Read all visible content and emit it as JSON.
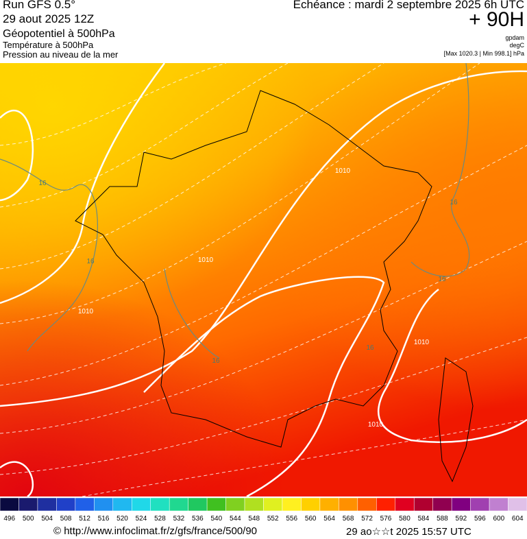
{
  "header": {
    "left": [
      "Run GFS 0.5°",
      "29 aout 2025 12Z",
      "Géopotentiel à 500hPa",
      "Température à 500hPa",
      "Pression au niveau de la mer"
    ],
    "right": {
      "title": "Echéance : mardi 2 septembre 2025 6h UTC",
      "lead": "+ 90H",
      "units": [
        "gpdam",
        "degC",
        "[Max 1020.3 | Min 998.1] hPa"
      ]
    }
  },
  "map": {
    "labels": [
      "1010",
      "1010",
      "1010",
      "1010",
      "1010",
      "16",
      "16",
      "16",
      "16",
      "16",
      "16"
    ]
  },
  "colorbar": {
    "labels": [
      496,
      500,
      504,
      508,
      512,
      516,
      520,
      524,
      528,
      532,
      536,
      540,
      544,
      548,
      552,
      556,
      560,
      564,
      568,
      572,
      576,
      580,
      584,
      588,
      592,
      596,
      600,
      604
    ],
    "colors": [
      "#0a0a40",
      "#1a1a6e",
      "#1f2fa0",
      "#2040c8",
      "#2060e8",
      "#2090f0",
      "#20b8f0",
      "#20d8e8",
      "#20e0c0",
      "#20d890",
      "#20c860",
      "#40c020",
      "#80d020",
      "#b0e020",
      "#e0f020",
      "#fff020",
      "#ffd000",
      "#ffb000",
      "#ff9000",
      "#ff6000",
      "#ff2000",
      "#e00020",
      "#b00030",
      "#900050",
      "#800080",
      "#a040b0",
      "#c080d0",
      "#e0c0e8"
    ]
  },
  "footer": {
    "url": "© http://www.infoclimat.fr/z/gfs/france/500/90",
    "timestamp": "29 ao☆☆t 2025 15:57 UTC"
  }
}
